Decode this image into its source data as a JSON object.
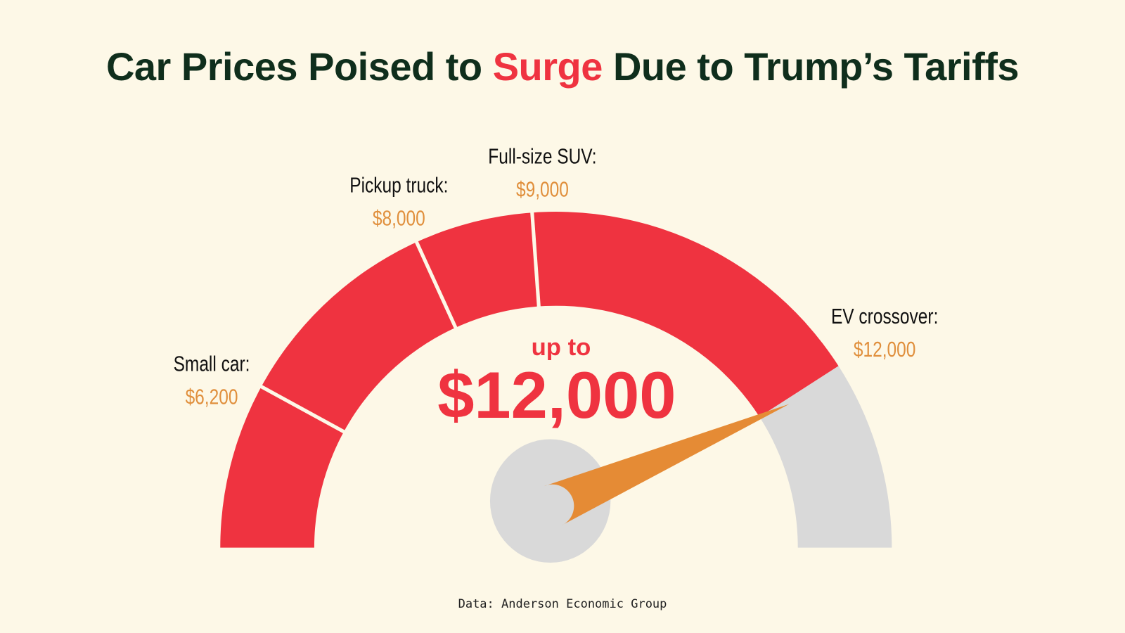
{
  "title": {
    "before": "Car Prices Poised to ",
    "highlight": "Surge",
    "after": " Due to Trump’s Tariffs"
  },
  "center": {
    "prefix": "up to",
    "value": "$12,000"
  },
  "source": "Data: Anderson Economic Group",
  "colors": {
    "background": "#fdf8e7",
    "red": "#ef3340",
    "gray": "#d9d9d9",
    "orange": "#e58b35",
    "title": "#0f2e1c",
    "value_label": "#e08f3c"
  },
  "chart_data": {
    "type": "gauge",
    "categories": [
      "Small car:",
      "Pickup truck:",
      "Full-size SUV:",
      "EV crossover:"
    ],
    "values": [
      6200,
      8000,
      9000,
      12000
    ],
    "value_labels": [
      "$6,200",
      "$8,000",
      "$9,000",
      "$12,000"
    ],
    "range": [
      4800,
      13600
    ],
    "needle_value": 12000
  }
}
